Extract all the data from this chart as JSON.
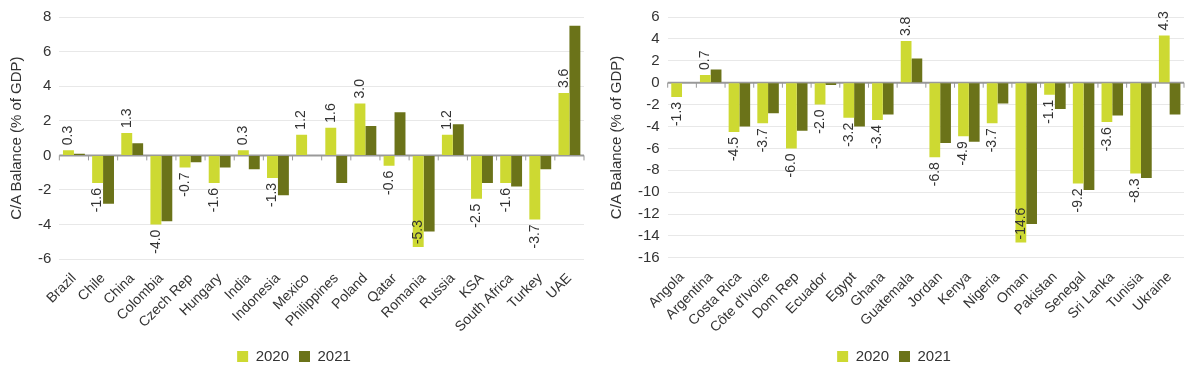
{
  "chart_data": [
    {
      "type": "bar",
      "ylabel": "C/A Balance (% of GDP)",
      "categories": [
        "Brazil",
        "Chile",
        "China",
        "Colombia",
        "Czech Rep",
        "Hungary",
        "India",
        "Indonesia",
        "Mexico",
        "Philippines",
        "Poland",
        "Qatar",
        "Romania",
        "Russia",
        "KSA",
        "South Africa",
        "Turkey",
        "UAE"
      ],
      "series": [
        {
          "name": "2020",
          "color": "#cdd932",
          "values": [
            0.3,
            -1.6,
            1.3,
            -4.0,
            -0.7,
            -1.6,
            0.3,
            -1.3,
            1.2,
            1.6,
            3.0,
            -0.6,
            -5.3,
            1.2,
            -2.5,
            -1.6,
            -3.7,
            3.6
          ],
          "value_labels": [
            "0.3",
            "-1.6",
            "1.3",
            "-4.0",
            "-0.7",
            "-1.6",
            "0.3",
            "-1.3",
            "1.2",
            "1.6",
            "3.0",
            "-0.6",
            "-5.3",
            "1.2",
            "-2.5",
            "-1.6",
            "-3.7",
            "3.6"
          ]
        },
        {
          "name": "2021",
          "color": "#6b7319",
          "values": [
            0.1,
            -2.8,
            0.7,
            -3.8,
            -0.4,
            -0.7,
            -0.8,
            -2.3,
            null,
            -1.6,
            1.7,
            2.5,
            -4.4,
            1.8,
            -1.6,
            -1.8,
            -0.8,
            7.5
          ]
        }
      ],
      "ylim": [
        -6,
        8
      ],
      "yticks": [
        -6,
        -4,
        -2,
        0,
        2,
        4,
        6,
        8
      ],
      "grid": "y",
      "legend": "bottom"
    },
    {
      "type": "bar",
      "ylabel": "C/A Balance (% of GDP)",
      "categories": [
        "Angola",
        "Argentina",
        "Costa Rica",
        "Côte d'Ivoire",
        "Dom Rep",
        "Ecuador",
        "Egypt",
        "Ghana",
        "Guatemala",
        "Jordan",
        "Kenya",
        "Nigeria",
        "Oman",
        "Pakistan",
        "Senegal",
        "Sri Lanka",
        "Tunisia",
        "Ukraine"
      ],
      "series": [
        {
          "name": "2020",
          "color": "#cdd932",
          "values": [
            -1.3,
            0.7,
            -4.5,
            -3.7,
            -6.0,
            -2.0,
            -3.2,
            -3.4,
            3.8,
            -6.8,
            -4.9,
            -3.7,
            -14.6,
            -1.1,
            -9.2,
            -3.6,
            -8.3,
            4.3
          ],
          "value_labels": [
            "-1.3",
            "0.7",
            "-4.5",
            "-3.7",
            "-6.0",
            "-2.0",
            "-3.2",
            "-3.4",
            "3.8",
            "-6.8",
            "-4.9",
            "-3.7",
            "-14.6",
            "-1.1",
            "-9.2",
            "-3.6",
            "-8.3",
            "4.3"
          ]
        },
        {
          "name": "2021",
          "color": "#6b7319",
          "values": [
            null,
            1.2,
            -4.0,
            -2.8,
            -4.4,
            -0.2,
            -4.0,
            -2.9,
            2.2,
            -5.5,
            -5.4,
            -1.9,
            -12.9,
            -2.4,
            -9.8,
            -3.0,
            -8.7,
            -2.9
          ]
        }
      ],
      "ylim": [
        -16,
        6
      ],
      "yticks": [
        -16,
        -14,
        -12,
        -10,
        -8,
        -6,
        -4,
        -2,
        0,
        2,
        4,
        6
      ],
      "grid": "y",
      "legend": "bottom"
    }
  ]
}
